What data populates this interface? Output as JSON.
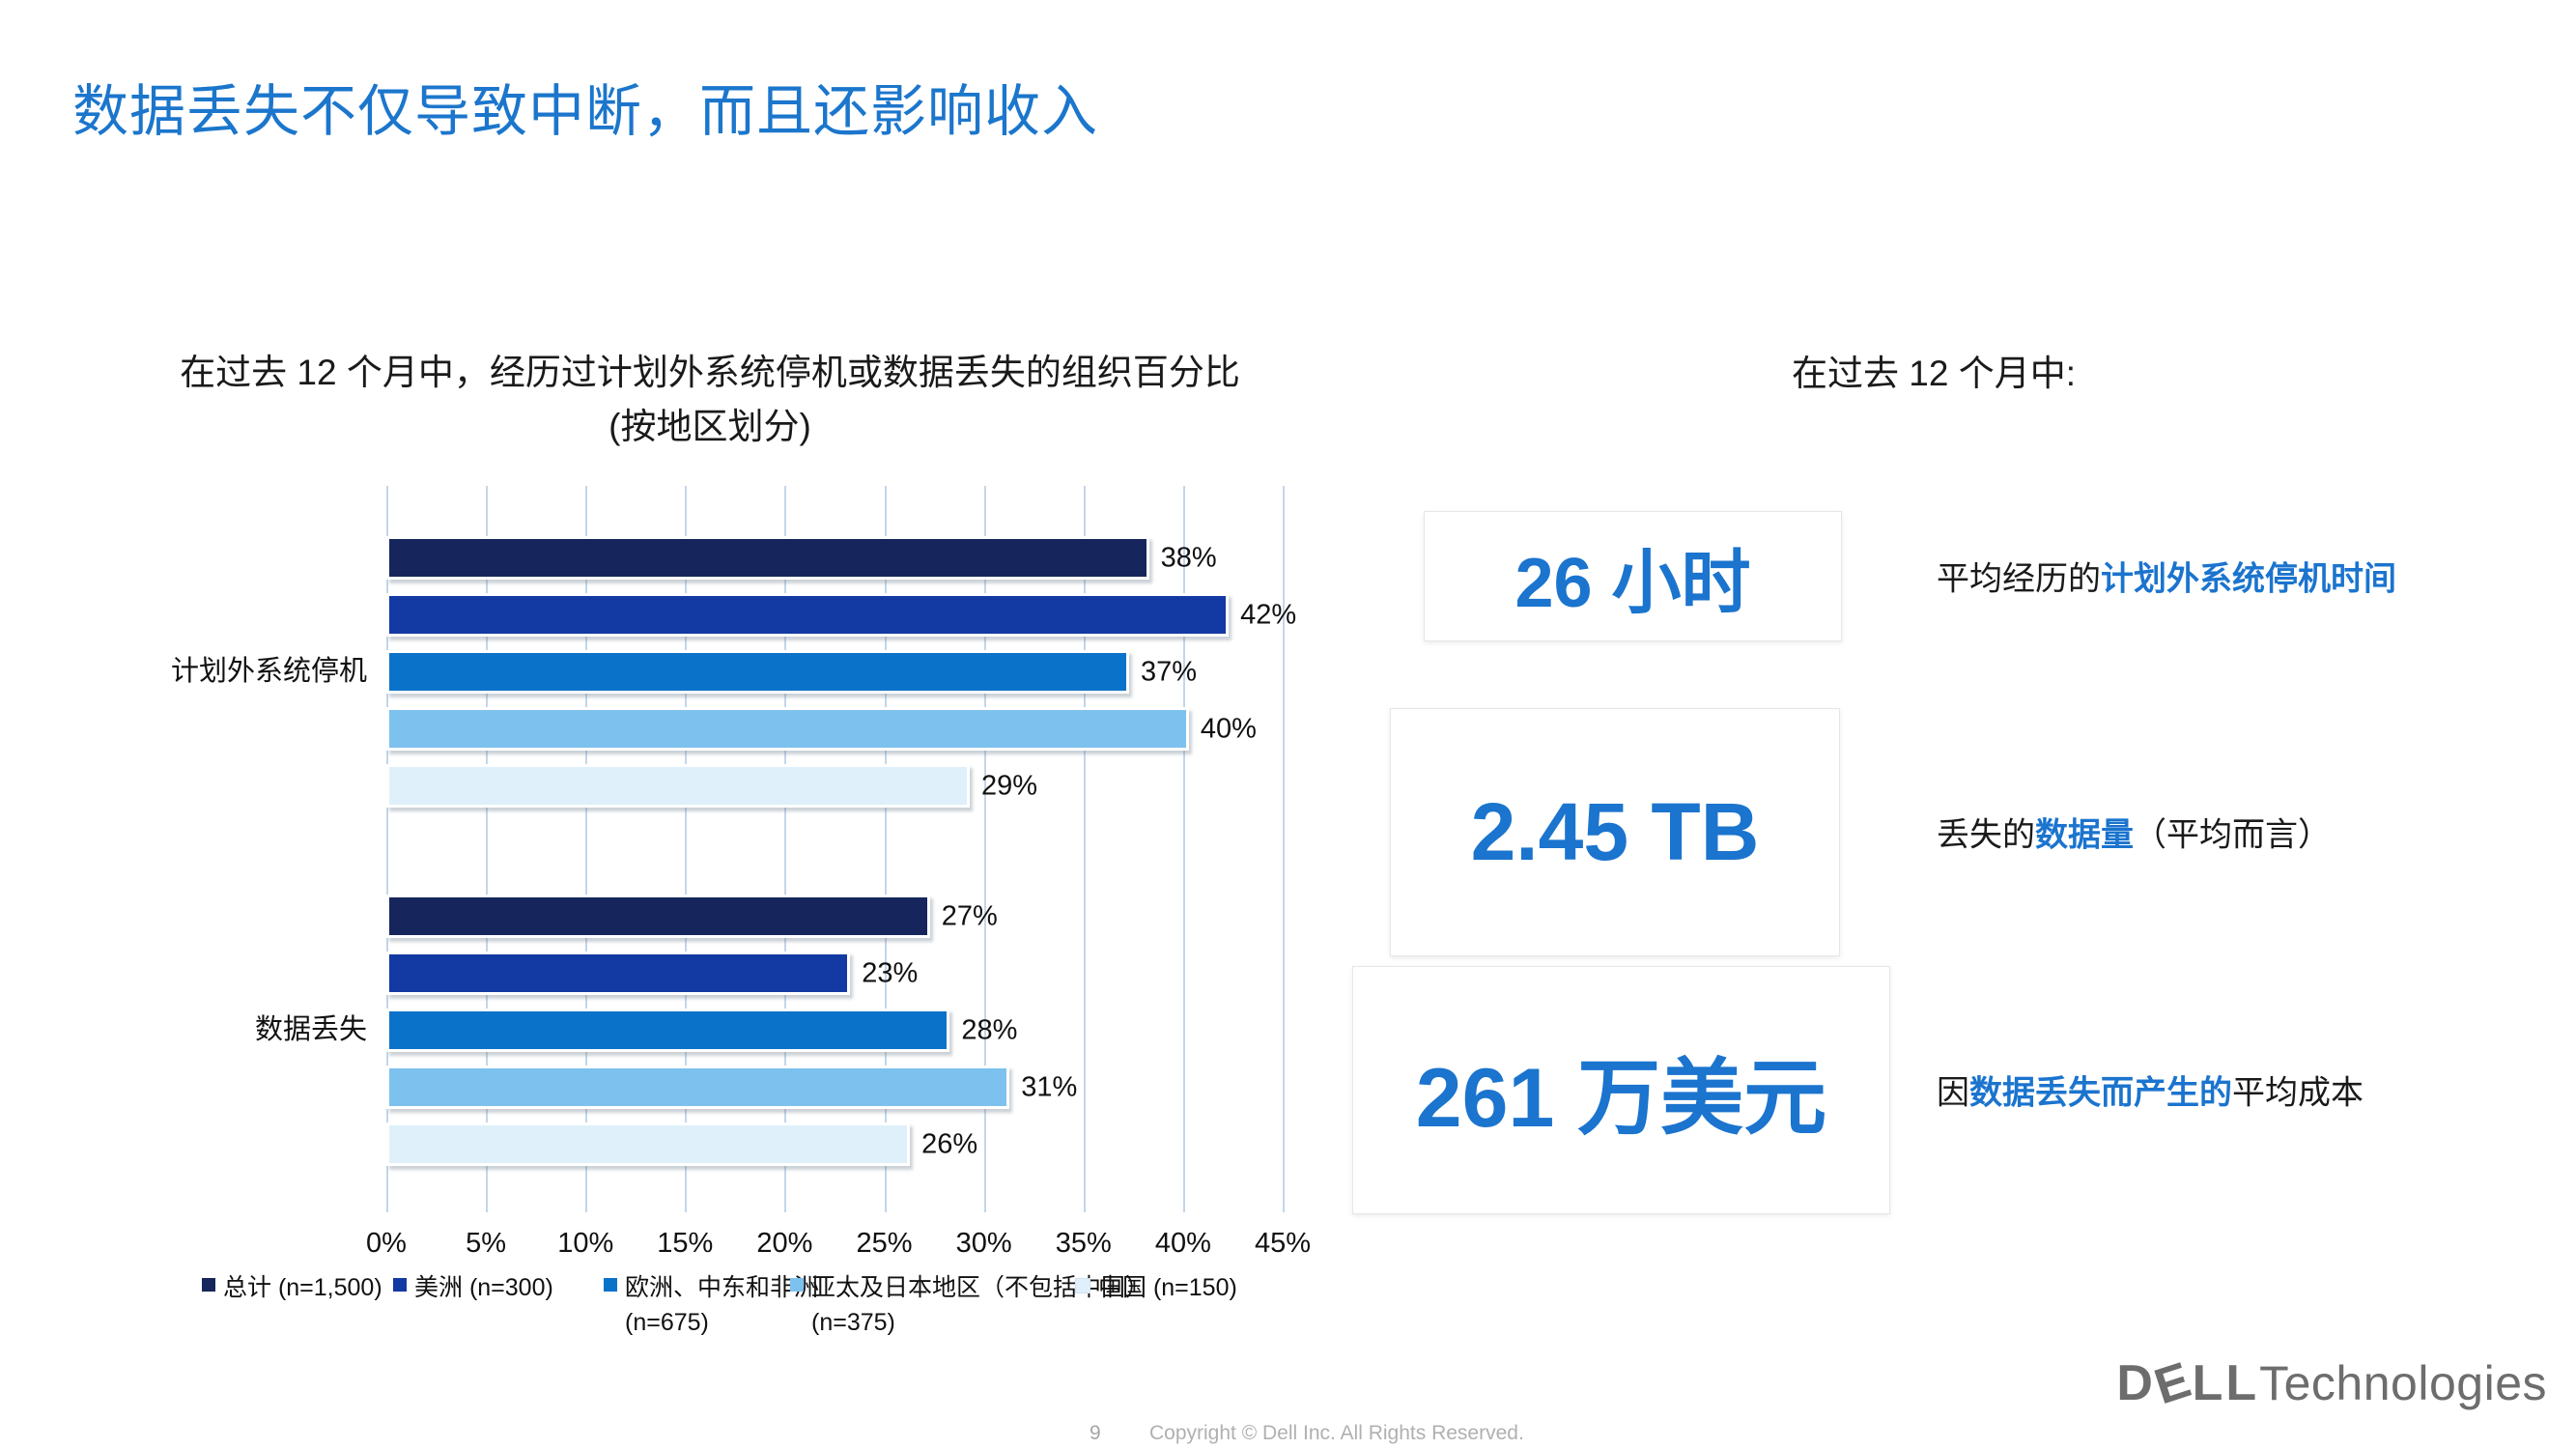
{
  "slide": {
    "title": "数据丢失不仅导致中断，而且还影响收入",
    "page_number": "9",
    "copyright": "Copyright © Dell Inc. All Rights Reserved.",
    "logo": {
      "d": "D",
      "e": "E",
      "ll": "LL",
      "suffix": "Technologies"
    }
  },
  "chart_data": {
    "type": "bar",
    "orientation": "horizontal",
    "title_line1": "在过去 12 个月中，经历过计划外系统停机或数据丢失的组织百分比",
    "title_line2": "(按地区划分)",
    "categories": [
      "计划外系统停机",
      "数据丢失"
    ],
    "series": [
      {
        "name": "总计 (n=1,500)",
        "color": "#16265c",
        "values": [
          38,
          27
        ]
      },
      {
        "name": "美洲 (n=300)",
        "color": "#1339a2",
        "values": [
          42,
          23
        ]
      },
      {
        "name": "欧洲、中东和非洲 (n=675)",
        "color": "#0b72ca",
        "values": [
          37,
          28
        ]
      },
      {
        "name": "亚太及日本地区（不包括中国）(n=375)",
        "color": "#7dc1ee",
        "values": [
          40,
          31
        ]
      },
      {
        "name": "中国 (n=150)",
        "color": "#dff0fa",
        "values": [
          29,
          26
        ]
      }
    ],
    "value_labels": {
      "计划外系统停机": [
        "38%",
        "42%",
        "37%",
        "40%",
        "29%"
      ],
      "数据丢失": [
        "27%",
        "23%",
        "28%",
        "31%",
        "26%"
      ]
    },
    "x_ticks": [
      "0%",
      "5%",
      "10%",
      "15%",
      "20%",
      "25%",
      "30%",
      "35%",
      "40%",
      "45%"
    ],
    "xlim": [
      0,
      45
    ],
    "grid": true,
    "legend_position": "bottom"
  },
  "legend": [
    {
      "line1": "总计 (n=1,500)",
      "line2": "",
      "color": "#16265c"
    },
    {
      "line1": "美洲 (n=300)",
      "line2": "",
      "color": "#1339a2"
    },
    {
      "line1": "欧洲、中东和非洲",
      "line2": "(n=675)",
      "color": "#0b72ca"
    },
    {
      "line1": "亚太及日本地区（不包括中国）",
      "line2": "(n=375)",
      "color": "#7dc1ee"
    },
    {
      "line1": "中国 (n=150)",
      "line2": "",
      "color": "#dff0fa"
    }
  ],
  "right_panel": {
    "heading": "在过去 12 个月中:",
    "stats": [
      {
        "value": "26 小时",
        "desc_parts": [
          {
            "text": "平均经历的",
            "bold": false
          },
          {
            "text": "计划外系统停机时间",
            "bold": true
          }
        ]
      },
      {
        "value": "2.45 TB",
        "desc_parts": [
          {
            "text": "丢失的",
            "bold": false
          },
          {
            "text": "数据量",
            "bold": true
          },
          {
            "text": "（平均而言）",
            "bold": false
          }
        ]
      },
      {
        "value": "261 万美元",
        "desc_parts": [
          {
            "text": "因",
            "bold": false
          },
          {
            "text": "数据丢失而产生的",
            "bold": true
          },
          {
            "text": "平均成本",
            "bold": false
          }
        ]
      }
    ]
  }
}
